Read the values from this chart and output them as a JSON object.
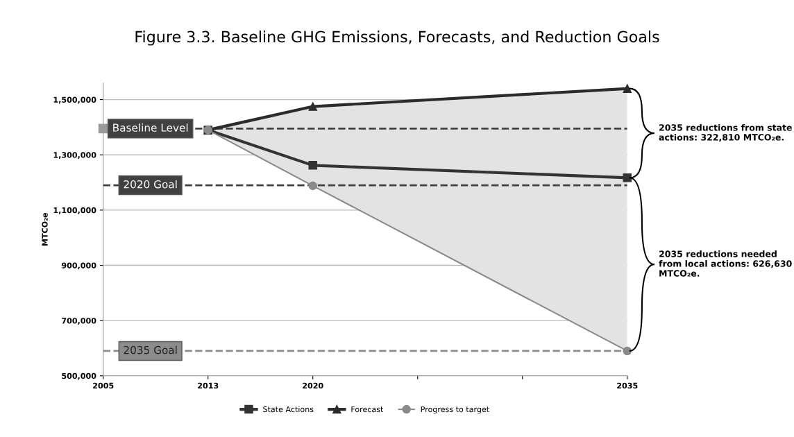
{
  "chart_data": {
    "type": "line",
    "title": "Figure 3.3. Baseline GHG Emissions, Forecasts, and Reduction Goals",
    "ylabel": "MTCO₂e",
    "categories": [
      "2005",
      "2013",
      "2020",
      null,
      null,
      "2035"
    ],
    "series": [
      {
        "name": "State Actions",
        "color": "#333333",
        "marker": "square",
        "values": [
          null,
          1390000,
          1262000,
          null,
          null,
          1217000
        ]
      },
      {
        "name": "Forecast",
        "color": "#2b2b2b",
        "marker": "triangle",
        "values": [
          null,
          1390000,
          1475000,
          null,
          null,
          1540000
        ],
        "upper": [
          null,
          1390000,
          1475000,
          null,
          null,
          1540000
        ],
        "lower": [
          null,
          1390000,
          1188000,
          null,
          null,
          590000
        ]
      },
      {
        "name": "Progress to target",
        "color": "#8a8a8a",
        "marker": "circle",
        "values": [
          null,
          1390000,
          1188000,
          null,
          null,
          590000
        ]
      },
      {
        "type": "scatter",
        "color": "#9a9a9a",
        "marker": "square",
        "values": [
          1395000,
          null,
          null,
          null,
          null,
          null
        ]
      }
    ],
    "ylim": [
      500000,
      1560000
    ],
    "yticks": [
      {
        "value": 500000,
        "label": "500,000"
      },
      {
        "value": 700000,
        "label": "700,000"
      },
      {
        "value": 900000,
        "label": "900,000"
      },
      {
        "value": 1100000,
        "label": "1,100,000"
      },
      {
        "value": 1300000,
        "label": "1,300,000"
      },
      {
        "value": 1500000,
        "label": "1,500,000"
      }
    ],
    "grid": "y",
    "legend": "bottom",
    "line_style": "solid",
    "ref_lines": [
      {
        "axis": "y",
        "value": 1395000,
        "label": "Baseline Level",
        "color": "#404040",
        "line_style": "dashed"
      },
      {
        "axis": "y",
        "value": 1190000,
        "label": "2020 Goal",
        "color": "#404040",
        "line_style": "dashed"
      },
      {
        "axis": "y",
        "value": 590000,
        "label": "2035 Goal",
        "color": "#8c8c8c",
        "line_style": "dashed"
      }
    ],
    "annotations": [
      "2035 reductions from state actions: 322,810 MTCO₂e.",
      "2035 reductions needed from local actions: 626,630 MTCO₂e."
    ]
  }
}
